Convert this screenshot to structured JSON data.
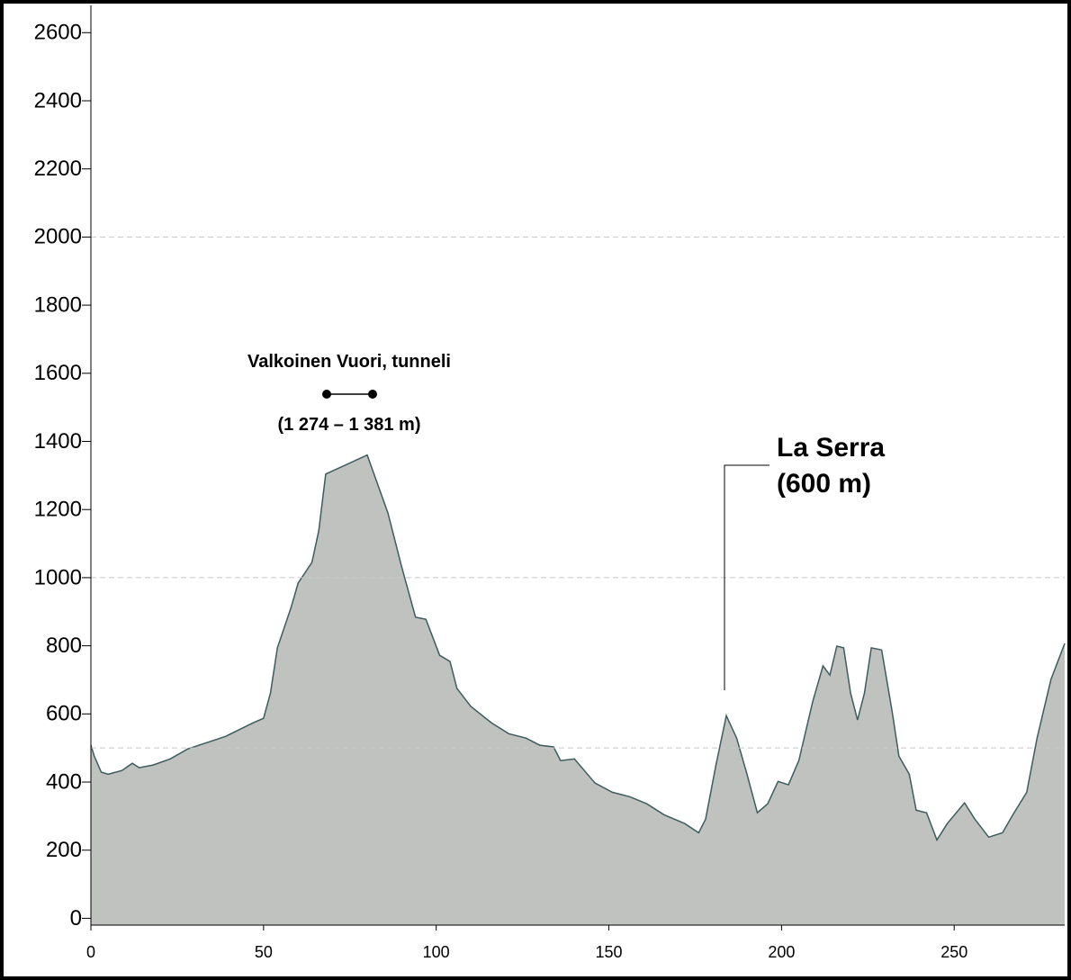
{
  "chart_data": {
    "type": "area",
    "x": [
      0,
      1,
      3,
      5,
      9,
      12,
      14,
      18,
      23,
      28,
      39,
      47,
      50,
      52,
      54,
      58,
      60,
      64,
      66,
      68,
      80,
      86,
      90,
      94,
      97,
      101,
      104,
      106,
      110,
      116,
      121,
      126,
      130,
      134,
      136,
      140,
      146,
      151,
      156,
      161,
      166,
      172,
      176,
      178,
      181,
      184,
      187,
      190,
      193,
      196,
      199,
      202,
      205,
      209,
      212,
      214,
      216,
      218,
      220,
      222,
      224,
      226,
      229,
      232,
      234,
      237,
      239,
      242,
      245,
      248,
      253,
      256,
      260,
      264,
      267,
      271,
      274,
      278,
      282
    ],
    "values": [
      508,
      476,
      429,
      423,
      434,
      455,
      442,
      450,
      468,
      497,
      534,
      574,
      587,
      661,
      794,
      913,
      984,
      1045,
      1138,
      1304,
      1360,
      1190,
      1032,
      884,
      878,
      772,
      754,
      675,
      622,
      574,
      542,
      529,
      508,
      503,
      463,
      468,
      397,
      370,
      357,
      336,
      304,
      278,
      251,
      291,
      450,
      595,
      529,
      423,
      310,
      336,
      402,
      392,
      463,
      635,
      741,
      714,
      799,
      794,
      661,
      582,
      661,
      794,
      788,
      608,
      476,
      423,
      317,
      310,
      230,
      278,
      339,
      291,
      238,
      251,
      304,
      370,
      529,
      701,
      807
    ],
    "color": "#c0c2c0",
    "line_color": "#3d5c5c",
    "xlim": [
      0,
      282
    ],
    "ylim": [
      -20,
      2680
    ],
    "xticks": [
      0,
      50,
      100,
      150,
      200,
      250
    ],
    "yticks": [
      0,
      200,
      400,
      600,
      800,
      1000,
      1200,
      1400,
      1600,
      1800,
      2000,
      2200,
      2400,
      2600
    ],
    "grid_lines": [
      500,
      1000,
      2000
    ],
    "annotations": [
      {
        "text": "Valkoinen Vuori, tunneli",
        "detail": "(1 274 – 1 381 m)"
      },
      {
        "text": "La Serra",
        "detail": "(600 m)"
      }
    ]
  }
}
